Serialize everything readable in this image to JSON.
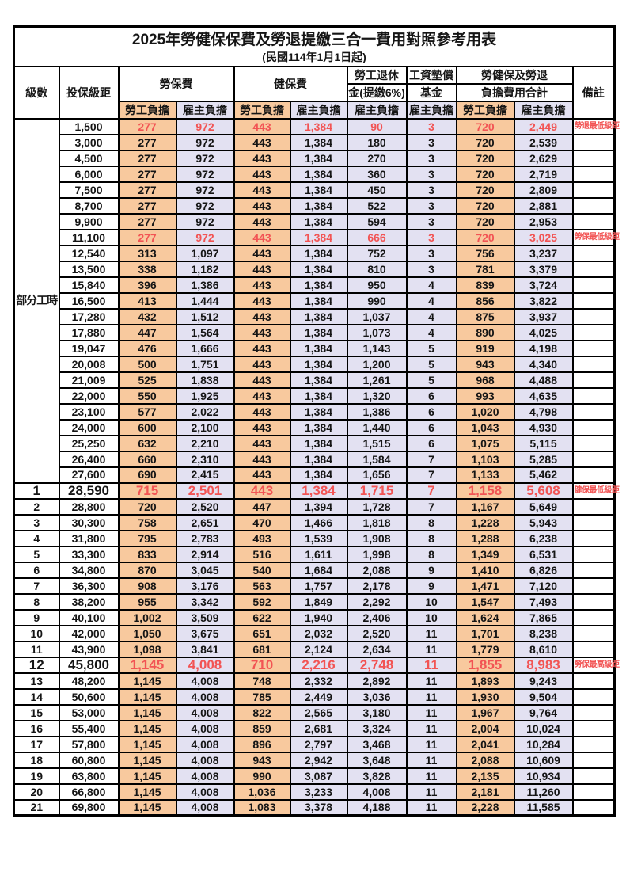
{
  "title": "2025年勞健保保費及勞退提繳三合一費用對照參考用表",
  "subtitle": "(民國114年1月1日起)",
  "columns": {
    "level": "級數",
    "bracket": "投保級距",
    "labor_insurance": "勞保費",
    "health_insurance": "健保費",
    "pension_line1": "勞工退休",
    "pension_line2": "金(提繳6%)",
    "wage_fund_line1": "工資墊償",
    "wage_fund_line2": "基金",
    "total_line1": "勞健保及勞退",
    "total_line2": "負擔費用合計",
    "remark": "備註",
    "employee_share": "勞工負擔",
    "employer_share": "雇主負擔"
  },
  "part_time_label": "部分工時",
  "colors": {
    "employee_bg": "#f8c99e",
    "employer_bg": "#e3e1f2",
    "highlight_red": "#f25454",
    "border": "#000000"
  },
  "rows": [
    [
      "",
      "1,500",
      "277",
      "972",
      "443",
      "1,384",
      "90",
      "3",
      "720",
      "2,449",
      "勞退最低級距",
      "red"
    ],
    [
      "",
      "3,000",
      "277",
      "972",
      "443",
      "1,384",
      "180",
      "3",
      "720",
      "2,539",
      "",
      ""
    ],
    [
      "",
      "4,500",
      "277",
      "972",
      "443",
      "1,384",
      "270",
      "3",
      "720",
      "2,629",
      "",
      ""
    ],
    [
      "",
      "6,000",
      "277",
      "972",
      "443",
      "1,384",
      "360",
      "3",
      "720",
      "2,719",
      "",
      ""
    ],
    [
      "",
      "7,500",
      "277",
      "972",
      "443",
      "1,384",
      "450",
      "3",
      "720",
      "2,809",
      "",
      ""
    ],
    [
      "",
      "8,700",
      "277",
      "972",
      "443",
      "1,384",
      "522",
      "3",
      "720",
      "2,881",
      "",
      ""
    ],
    [
      "",
      "9,900",
      "277",
      "972",
      "443",
      "1,384",
      "594",
      "3",
      "720",
      "2,953",
      "",
      ""
    ],
    [
      "",
      "11,100",
      "277",
      "972",
      "443",
      "1,384",
      "666",
      "3",
      "720",
      "3,025",
      "勞保最低級距",
      "red"
    ],
    [
      "",
      "12,540",
      "313",
      "1,097",
      "443",
      "1,384",
      "752",
      "3",
      "756",
      "3,237",
      "",
      ""
    ],
    [
      "",
      "13,500",
      "338",
      "1,182",
      "443",
      "1,384",
      "810",
      "3",
      "781",
      "3,379",
      "",
      ""
    ],
    [
      "",
      "15,840",
      "396",
      "1,386",
      "443",
      "1,384",
      "950",
      "4",
      "839",
      "3,724",
      "",
      ""
    ],
    [
      "",
      "16,500",
      "413",
      "1,444",
      "443",
      "1,384",
      "990",
      "4",
      "856",
      "3,822",
      "",
      ""
    ],
    [
      "",
      "17,280",
      "432",
      "1,512",
      "443",
      "1,384",
      "1,037",
      "4",
      "875",
      "3,937",
      "",
      ""
    ],
    [
      "",
      "17,880",
      "447",
      "1,564",
      "443",
      "1,384",
      "1,073",
      "4",
      "890",
      "4,025",
      "",
      ""
    ],
    [
      "",
      "19,047",
      "476",
      "1,666",
      "443",
      "1,384",
      "1,143",
      "5",
      "919",
      "4,198",
      "",
      ""
    ],
    [
      "",
      "20,008",
      "500",
      "1,751",
      "443",
      "1,384",
      "1,200",
      "5",
      "943",
      "4,340",
      "",
      ""
    ],
    [
      "",
      "21,009",
      "525",
      "1,838",
      "443",
      "1,384",
      "1,261",
      "5",
      "968",
      "4,488",
      "",
      ""
    ],
    [
      "",
      "22,000",
      "550",
      "1,925",
      "443",
      "1,384",
      "1,320",
      "6",
      "993",
      "4,635",
      "",
      ""
    ],
    [
      "",
      "23,100",
      "577",
      "2,022",
      "443",
      "1,384",
      "1,386",
      "6",
      "1,020",
      "4,798",
      "",
      ""
    ],
    [
      "",
      "24,000",
      "600",
      "2,100",
      "443",
      "1,384",
      "1,440",
      "6",
      "1,043",
      "4,930",
      "",
      ""
    ],
    [
      "",
      "25,250",
      "632",
      "2,210",
      "443",
      "1,384",
      "1,515",
      "6",
      "1,075",
      "5,115",
      "",
      ""
    ],
    [
      "",
      "26,400",
      "660",
      "2,310",
      "443",
      "1,384",
      "1,584",
      "7",
      "1,103",
      "5,285",
      "",
      ""
    ],
    [
      "",
      "27,600",
      "690",
      "2,415",
      "443",
      "1,384",
      "1,656",
      "7",
      "1,133",
      "5,462",
      "",
      ""
    ],
    [
      "1",
      "28,590",
      "715",
      "2,501",
      "443",
      "1,384",
      "1,715",
      "7",
      "1,158",
      "5,608",
      "健保最低級距",
      "red big"
    ],
    [
      "2",
      "28,800",
      "720",
      "2,520",
      "447",
      "1,394",
      "1,728",
      "7",
      "1,167",
      "5,649",
      "",
      ""
    ],
    [
      "3",
      "30,300",
      "758",
      "2,651",
      "470",
      "1,466",
      "1,818",
      "8",
      "1,228",
      "5,943",
      "",
      ""
    ],
    [
      "4",
      "31,800",
      "795",
      "2,783",
      "493",
      "1,539",
      "1,908",
      "8",
      "1,288",
      "6,238",
      "",
      ""
    ],
    [
      "5",
      "33,300",
      "833",
      "2,914",
      "516",
      "1,611",
      "1,998",
      "8",
      "1,349",
      "6,531",
      "",
      ""
    ],
    [
      "6",
      "34,800",
      "870",
      "3,045",
      "540",
      "1,684",
      "2,088",
      "9",
      "1,410",
      "6,826",
      "",
      ""
    ],
    [
      "7",
      "36,300",
      "908",
      "3,176",
      "563",
      "1,757",
      "2,178",
      "9",
      "1,471",
      "7,120",
      "",
      ""
    ],
    [
      "8",
      "38,200",
      "955",
      "3,342",
      "592",
      "1,849",
      "2,292",
      "10",
      "1,547",
      "7,493",
      "",
      ""
    ],
    [
      "9",
      "40,100",
      "1,002",
      "3,509",
      "622",
      "1,940",
      "2,406",
      "10",
      "1,624",
      "7,865",
      "",
      ""
    ],
    [
      "10",
      "42,000",
      "1,050",
      "3,675",
      "651",
      "2,032",
      "2,520",
      "11",
      "1,701",
      "8,238",
      "",
      ""
    ],
    [
      "11",
      "43,900",
      "1,098",
      "3,841",
      "681",
      "2,124",
      "2,634",
      "11",
      "1,779",
      "8,610",
      "",
      ""
    ],
    [
      "12",
      "45,800",
      "1,145",
      "4,008",
      "710",
      "2,216",
      "2,748",
      "11",
      "1,855",
      "8,983",
      "勞保最高級距",
      "red big"
    ],
    [
      "13",
      "48,200",
      "1,145",
      "4,008",
      "748",
      "2,332",
      "2,892",
      "11",
      "1,893",
      "9,243",
      "",
      ""
    ],
    [
      "14",
      "50,600",
      "1,145",
      "4,008",
      "785",
      "2,449",
      "3,036",
      "11",
      "1,930",
      "9,504",
      "",
      ""
    ],
    [
      "15",
      "53,000",
      "1,145",
      "4,008",
      "822",
      "2,565",
      "3,180",
      "11",
      "1,967",
      "9,764",
      "",
      ""
    ],
    [
      "16",
      "55,400",
      "1,145",
      "4,008",
      "859",
      "2,681",
      "3,324",
      "11",
      "2,004",
      "10,024",
      "",
      ""
    ],
    [
      "17",
      "57,800",
      "1,145",
      "4,008",
      "896",
      "2,797",
      "3,468",
      "11",
      "2,041",
      "10,284",
      "",
      ""
    ],
    [
      "18",
      "60,800",
      "1,145",
      "4,008",
      "943",
      "2,942",
      "3,648",
      "11",
      "2,088",
      "10,609",
      "",
      ""
    ],
    [
      "19",
      "63,800",
      "1,145",
      "4,008",
      "990",
      "3,087",
      "3,828",
      "11",
      "2,135",
      "10,934",
      "",
      ""
    ],
    [
      "20",
      "66,800",
      "1,145",
      "4,008",
      "1,036",
      "3,233",
      "4,008",
      "11",
      "2,181",
      "11,260",
      "",
      ""
    ],
    [
      "21",
      "69,800",
      "1,145",
      "4,008",
      "1,083",
      "3,378",
      "4,188",
      "11",
      "2,228",
      "11,585",
      "",
      ""
    ]
  ]
}
